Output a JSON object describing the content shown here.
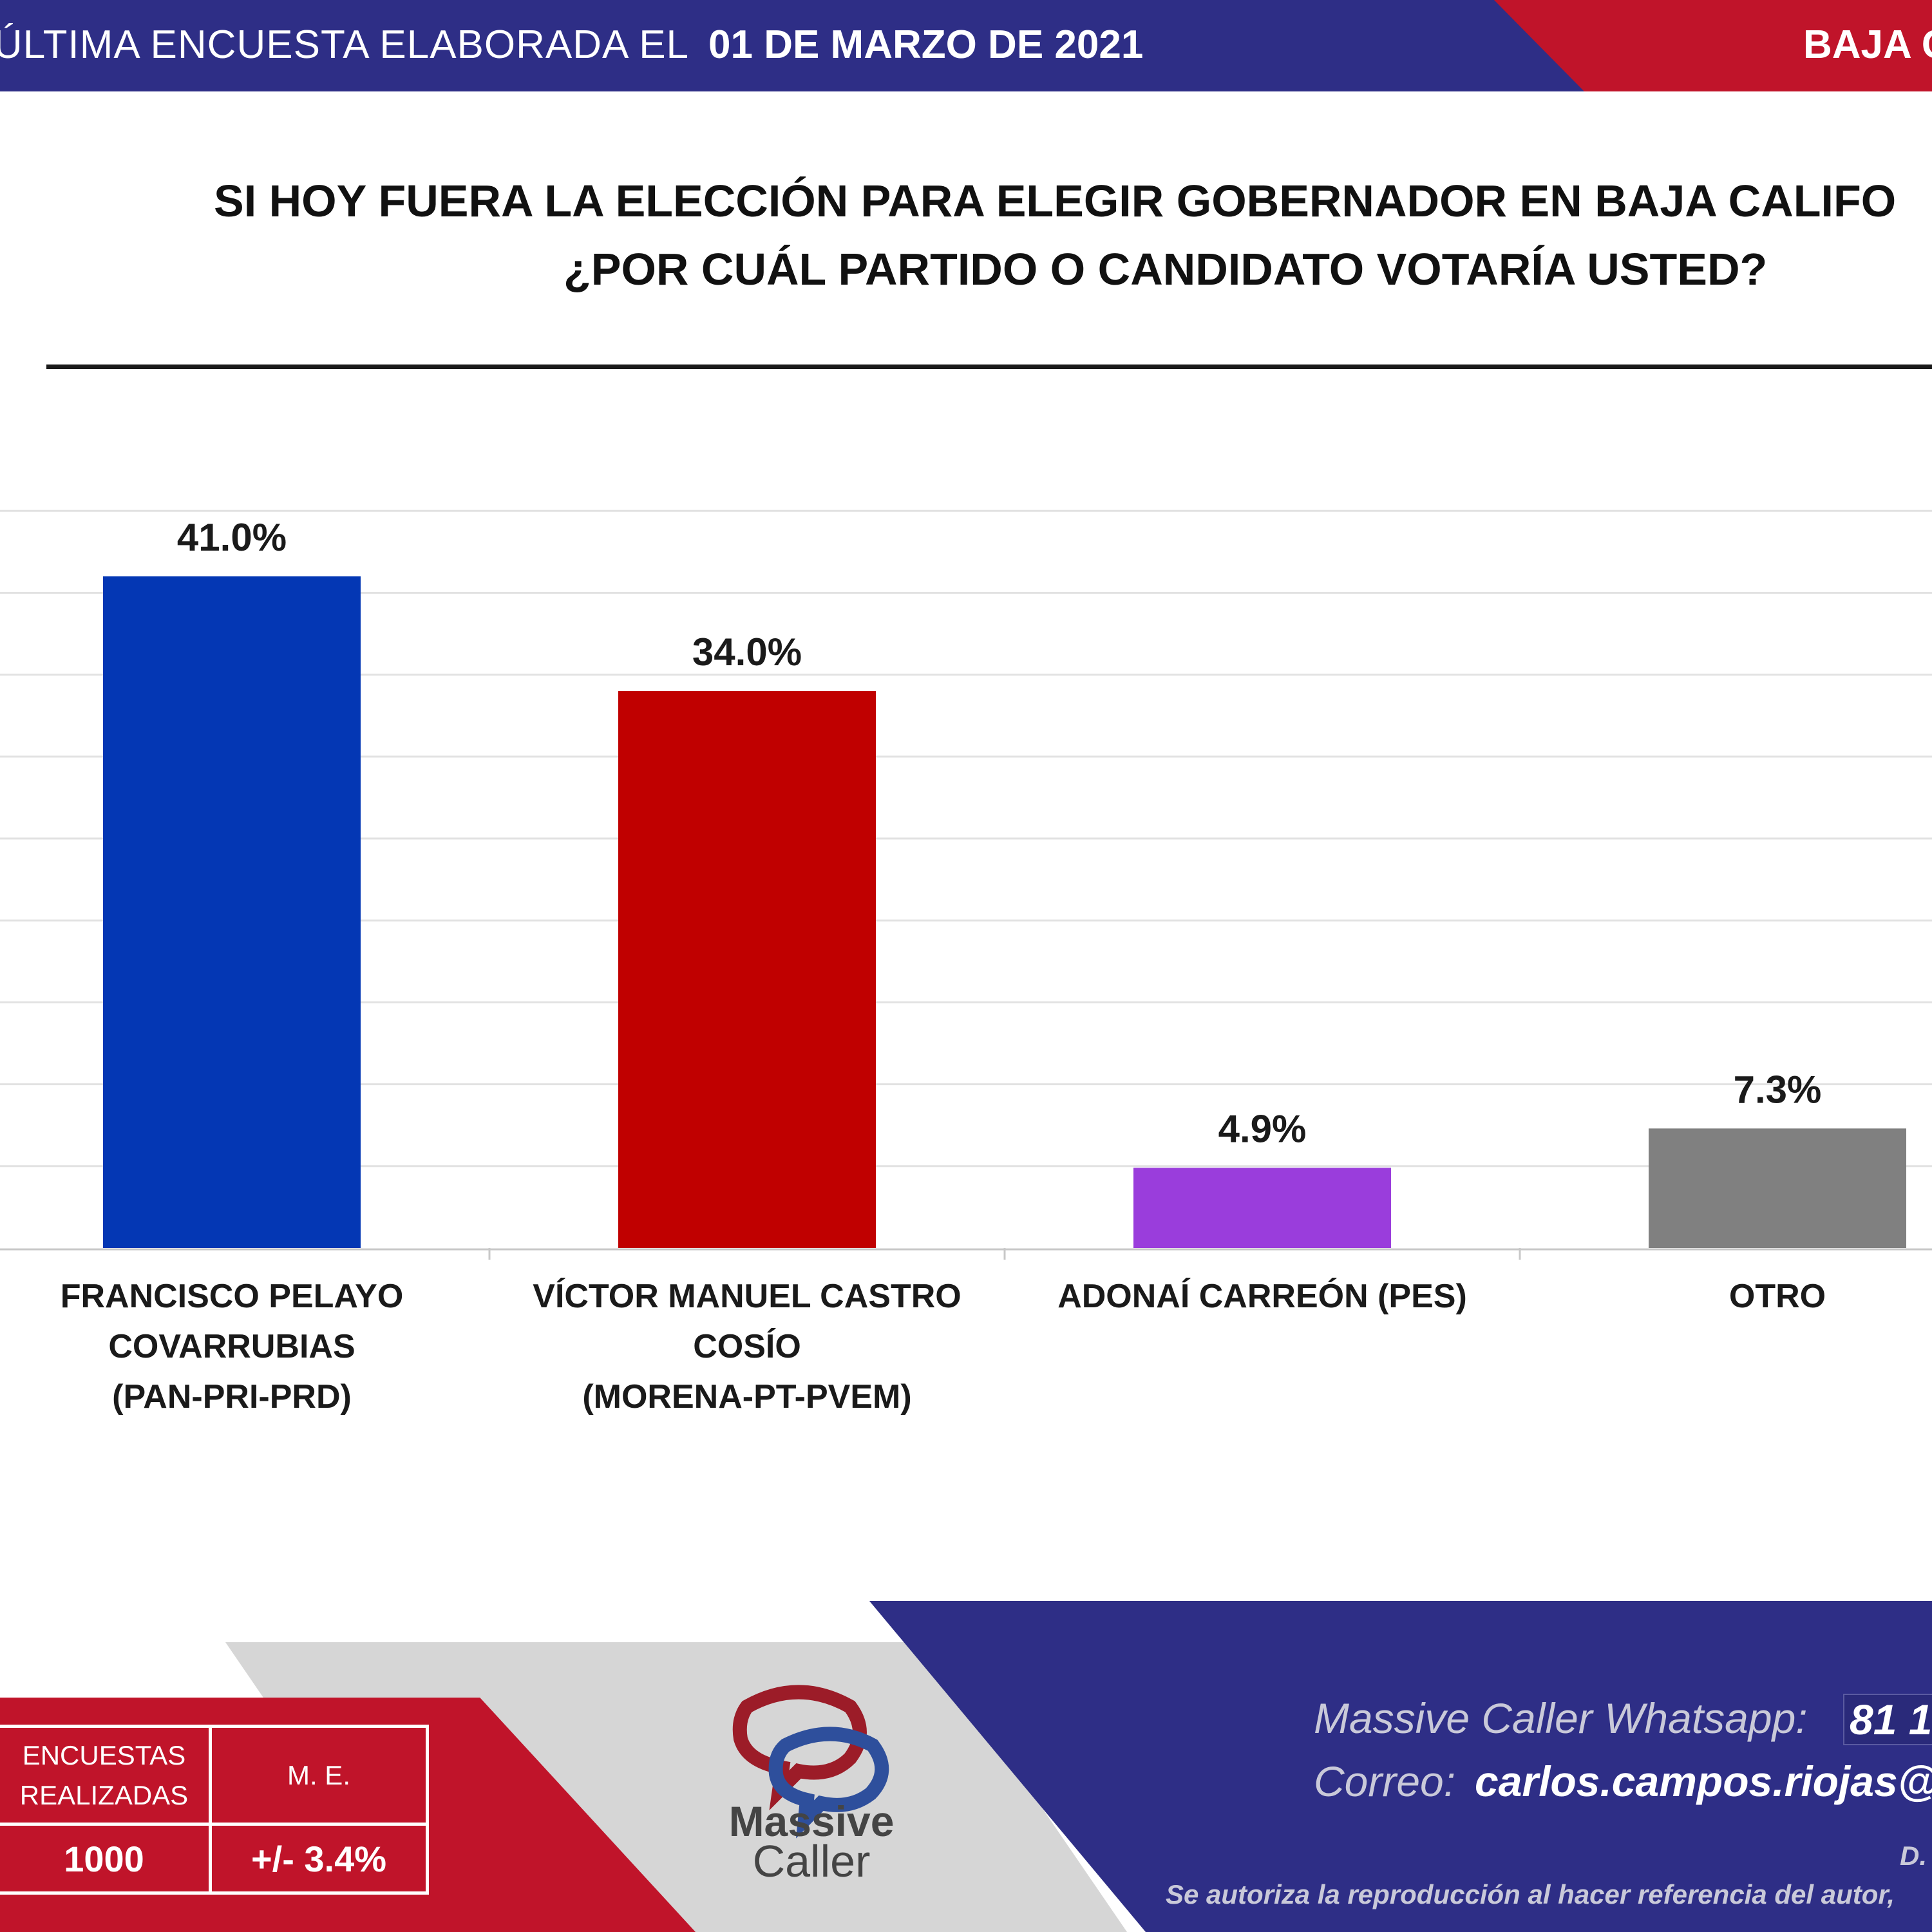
{
  "header": {
    "left_text": "ÚLTIMA ENCUESTA ELABORADA EL",
    "date": "01 DE MARZO DE 2021",
    "right_text": "BAJA C"
  },
  "title": {
    "line1": "SI HOY FUERA LA ELECCIÓN PARA ELEGIR GOBERNADOR EN BAJA CALIFO",
    "line2": "¿POR CUÁL PARTIDO O CANDIDATO VOTARÍA USTED?"
  },
  "chart_data": {
    "type": "bar",
    "categories": [
      [
        "FRANCISCO PELAYO",
        "COVARRUBIAS",
        "(PAN-PRI-PRD)"
      ],
      [
        "VÍCTOR MANUEL CASTRO",
        "COSÍO",
        "(MORENA-PT-PVEM)"
      ],
      [
        "ADONAÍ CARREÓN (PES)"
      ],
      [
        "OTRO"
      ]
    ],
    "values": [
      41.0,
      34.0,
      4.9,
      7.3
    ],
    "value_labels": [
      "41.0%",
      "34.0%",
      "4.9%",
      "7.3%"
    ],
    "colors": [
      "#0437b4",
      "#c00000",
      "#9a3ddc",
      "#808080"
    ],
    "ylim": [
      0,
      45
    ],
    "grid": true,
    "legend": "none"
  },
  "footer": {
    "stats_header_1": "ENCUESTAS REALIZADAS",
    "stats_header_2": "M. E.",
    "stats_value_1": "1000",
    "stats_value_2": "+/- 3.4%",
    "brand_line1": "Massive",
    "brand_line2": "Caller",
    "whatsapp_label": "Massive Caller Whatsapp:",
    "whatsapp_number": "81 1",
    "email_label": "Correo:",
    "email": "carlos.campos.riojas@",
    "ds_text": "D.",
    "note": "Se autoriza la reproducción al hacer referencia del autor,"
  },
  "colors": {
    "header_blue": "#2e2e86",
    "header_red": "#c0142a",
    "footer_gray": "#d6d6d6"
  }
}
